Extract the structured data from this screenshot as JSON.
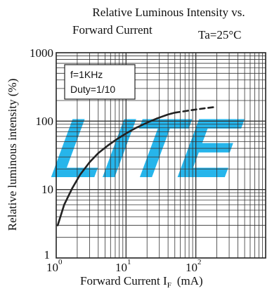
{
  "watermark_text": "LITE",
  "colors": {
    "grid": "#333333",
    "curve": "#222222",
    "watermark": "#00a8e8",
    "text": "#111111"
  },
  "chart_data": {
    "type": "line",
    "title_line1": "Relative Luminous Intensity vs.",
    "title_line2": "Forward Current",
    "condition": "Ta=25°C",
    "annotations": [
      "f=1KHz",
      "Duty=1/10"
    ],
    "xlabel_main": "Forward Current  I",
    "xlabel_sub": "F",
    "xlabel_unit": "(mA)",
    "ylabel": "Relative luminous intensity (%)",
    "x_scale": "log",
    "y_scale": "log",
    "xlim": [
      1,
      1000
    ],
    "ylim": [
      1,
      1000
    ],
    "x_ticks": [
      {
        "value": 1,
        "base": "10",
        "exp": "0"
      },
      {
        "value": 10,
        "base": "10",
        "exp": "1"
      },
      {
        "value": 100,
        "base": "10",
        "exp": "2"
      }
    ],
    "y_ticks": [
      {
        "value": 1,
        "label": "1"
      },
      {
        "value": 10,
        "label": "10"
      },
      {
        "value": 100,
        "label": "100"
      },
      {
        "value": 1000,
        "label": "1000"
      }
    ],
    "grid": true,
    "series": [
      {
        "style": "solid",
        "x": [
          1.05,
          1.3,
          1.7,
          2.2,
          3,
          4,
          5.5,
          7.5,
          10,
          14,
          20,
          28,
          40,
          50
        ],
        "y": [
          3.0,
          6.0,
          10.5,
          16.5,
          25,
          34,
          44,
          55,
          66,
          80,
          95,
          110,
          125,
          133
        ]
      },
      {
        "style": "dashed",
        "x": [
          50,
          70,
          100,
          140,
          180
        ],
        "y": [
          133,
          140,
          148,
          155,
          160
        ]
      }
    ]
  }
}
